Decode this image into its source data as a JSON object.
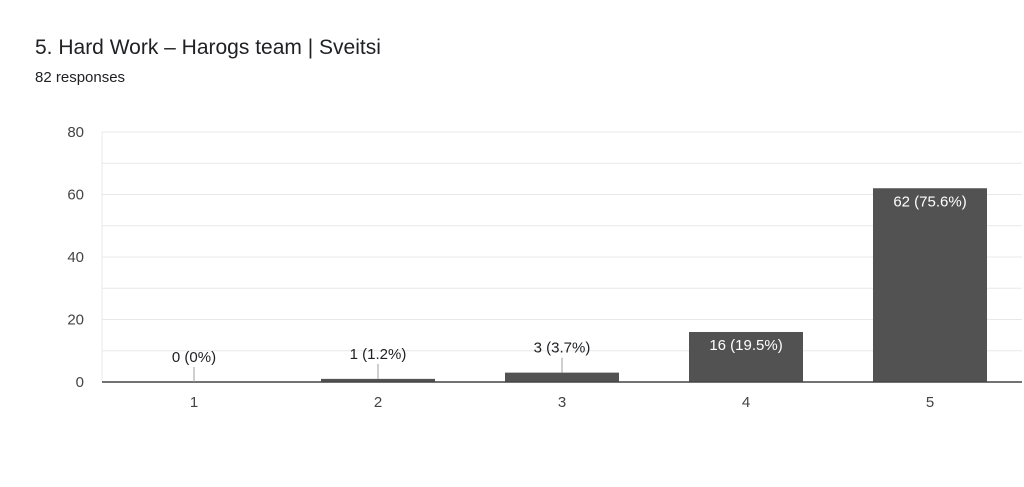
{
  "header": {
    "title": "5. Hard Work – Harogs team | Sveitsi",
    "responses": "82 responses"
  },
  "colors": {
    "bar": "#525252",
    "grid": "#e8e8e8",
    "axis": "#444444",
    "label_outside": "#202124",
    "label_inside": "#ffffff"
  },
  "chart_data": {
    "type": "bar",
    "categories": [
      "1",
      "2",
      "3",
      "4",
      "5"
    ],
    "values": [
      0,
      1,
      3,
      16,
      62
    ],
    "data_labels": [
      "0 (0%)",
      "1 (1.2%)",
      "3 (3.7%)",
      "16 (19.5%)",
      "62 (75.6%)"
    ],
    "ylim": [
      0,
      80
    ],
    "yticks": [
      0,
      20,
      40,
      60,
      80
    ],
    "grid": true,
    "legend": "none"
  }
}
